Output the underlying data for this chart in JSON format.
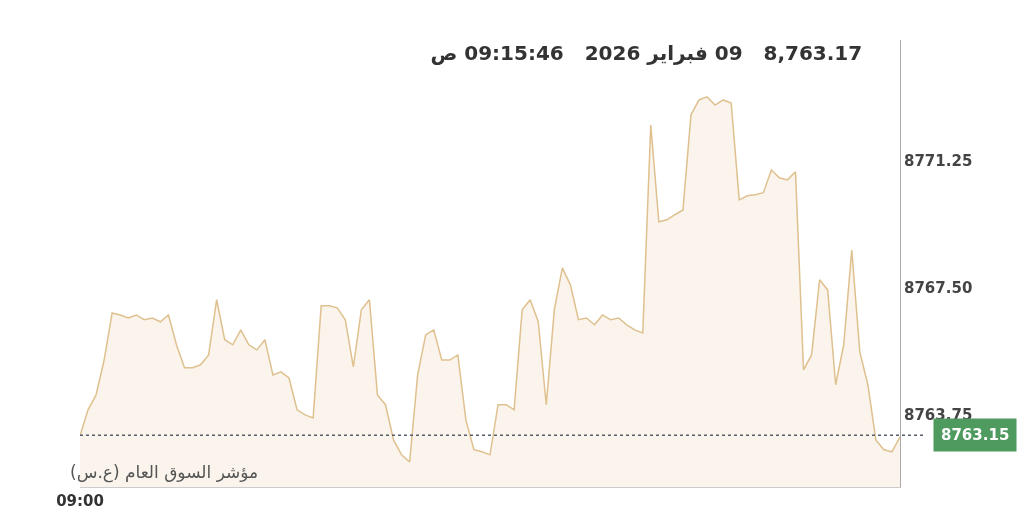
{
  "chart_data": {
    "type": "area",
    "title": "8,763.17   09 فبراير 2026   09:15:46 ص",
    "annotations": [
      "مؤشر السوق العام (ع.س)"
    ],
    "categories": [
      "09:00",
      null,
      null,
      null,
      null,
      null,
      null,
      null,
      null,
      null,
      null,
      null,
      null,
      null,
      null,
      null,
      null,
      null,
      null,
      null,
      null,
      null,
      null,
      null,
      null,
      null,
      null,
      null,
      null,
      null,
      null,
      null,
      null,
      null,
      null,
      null,
      null,
      null,
      null,
      null,
      null,
      null,
      null,
      null,
      null,
      null,
      null,
      null,
      null,
      null,
      null,
      null,
      null,
      null,
      null,
      null,
      null,
      null,
      null,
      null,
      null,
      null,
      null,
      null,
      null,
      null,
      null,
      null,
      null,
      null,
      null,
      null,
      null,
      null,
      null,
      null,
      null,
      null,
      null,
      null,
      null,
      null,
      null,
      null,
      null,
      null,
      null,
      null,
      null,
      null,
      null,
      null,
      null,
      null,
      null,
      null,
      null,
      null,
      null,
      null,
      null,
      null,
      null
    ],
    "series": [
      {
        "color": "#dfc08f",
        "values": [
          8763.13,
          8763.9,
          8764.34,
          8765.37,
          8766.76,
          8766.7,
          8766.61,
          8766.7,
          8766.56,
          8766.61,
          8766.5,
          8766.7,
          8765.82,
          8765.14,
          8765.14,
          8765.23,
          8765.52,
          8767.15,
          8765.97,
          8765.82,
          8766.26,
          8765.82,
          8765.67,
          8765.97,
          8764.93,
          8765.02,
          8764.84,
          8763.9,
          8763.75,
          8763.66,
          8766.97,
          8766.97,
          8766.91,
          8766.56,
          8765.17,
          8766.85,
          8767.15,
          8764.34,
          8764.05,
          8763.01,
          8762.57,
          8762.36,
          8764.93,
          8766.11,
          8766.26,
          8765.37,
          8765.37,
          8765.52,
          8763.6,
          8762.72,
          8762.66,
          8762.57,
          8764.05,
          8764.05,
          8763.9,
          8766.85,
          8767.15,
          8766.5,
          8764.05,
          8766.85,
          8768.09,
          8767.59,
          8766.56,
          8766.61,
          8766.41,
          8766.7,
          8766.56,
          8766.61,
          8766.41,
          8766.26,
          8766.17,
          8772.31,
          8769.45,
          8769.51,
          8769.66,
          8769.8,
          8772.61,
          8773.05,
          8773.14,
          8772.9,
          8773.05,
          8772.96,
          8770.1,
          8770.22,
          8770.25,
          8770.31,
          8770.98,
          8770.75,
          8770.69,
          8770.93,
          8765.08,
          8765.52,
          8767.74,
          8767.44,
          8764.64,
          8765.82,
          8768.62,
          8765.61,
          8764.64,
          8763.01,
          8762.72,
          8762.66,
          8763.1
        ]
      }
    ],
    "ylim": [
      8761.62,
      8774.82
    ],
    "yticks": [
      8763.75,
      {
        "value": 8767.5,
        "label": "8767.50"
      },
      8771.25
    ],
    "ref_lines": [
      {
        "axis": "y",
        "value": 8763.15,
        "label": "8763.15",
        "color": "#555e6b",
        "line_style": "dotted"
      }
    ],
    "marker": "none",
    "line_style": "solid"
  }
}
